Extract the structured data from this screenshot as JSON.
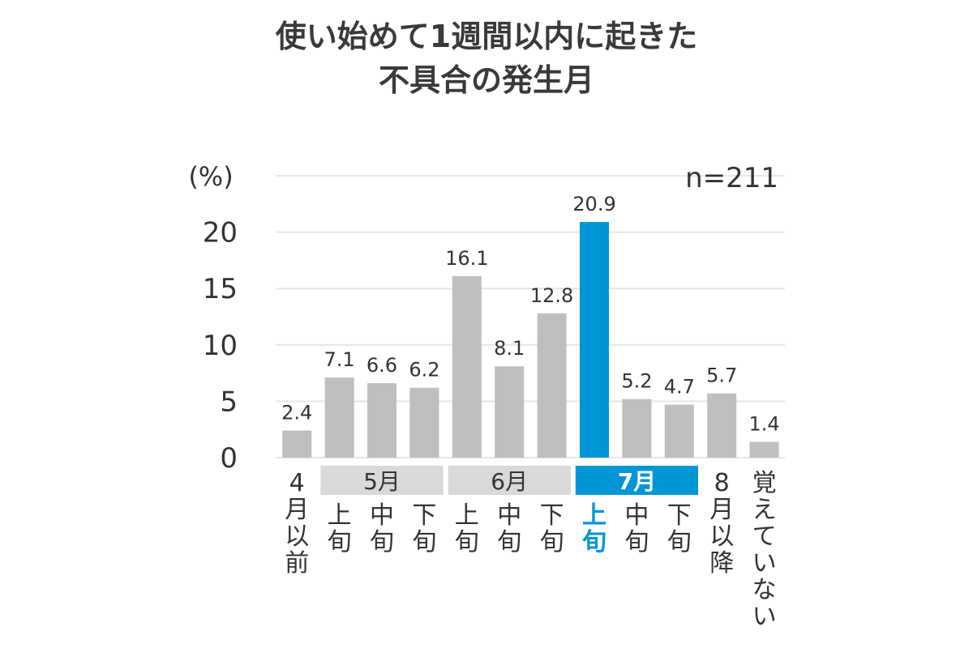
{
  "chart_data": {
    "type": "bar",
    "title_lines": [
      "使い始めて1週間以内に起きた",
      "不具合の発生月"
    ],
    "unit_label": "(%)",
    "sample_label": "n=211",
    "ylim": [
      0,
      25
    ],
    "yticks": [
      "0",
      "5",
      "10",
      "15",
      "20"
    ],
    "grid": true,
    "groups": [
      {
        "label": "5月",
        "highlight": false
      },
      {
        "label": "6月",
        "highlight": false
      },
      {
        "label": "7月",
        "highlight": true
      }
    ],
    "categories": [
      {
        "label": [
          "4",
          "月",
          "以",
          "前"
        ],
        "value": 2.4,
        "value_label": "2.4",
        "highlight": false
      },
      {
        "label": [
          "上",
          "旬"
        ],
        "value": 7.1,
        "value_label": "7.1",
        "highlight": false
      },
      {
        "label": [
          "中",
          "旬"
        ],
        "value": 6.6,
        "value_label": "6.6",
        "highlight": false
      },
      {
        "label": [
          "下",
          "旬"
        ],
        "value": 6.2,
        "value_label": "6.2",
        "highlight": false
      },
      {
        "label": [
          "上",
          "旬"
        ],
        "value": 16.1,
        "value_label": "16.1",
        "highlight": false
      },
      {
        "label": [
          "中",
          "旬"
        ],
        "value": 8.1,
        "value_label": "8.1",
        "highlight": false
      },
      {
        "label": [
          "下",
          "旬"
        ],
        "value": 12.8,
        "value_label": "12.8",
        "highlight": false
      },
      {
        "label": [
          "上",
          "旬"
        ],
        "value": 20.9,
        "value_label": "20.9",
        "highlight": true
      },
      {
        "label": [
          "中",
          "旬"
        ],
        "value": 5.2,
        "value_label": "5.2",
        "highlight": false
      },
      {
        "label": [
          "下",
          "旬"
        ],
        "value": 4.7,
        "value_label": "4.7",
        "highlight": false
      },
      {
        "label": [
          "8",
          "月",
          "以",
          "降"
        ],
        "value": 5.7,
        "value_label": "5.7",
        "highlight": false
      },
      {
        "label": [
          "覚",
          "え",
          "て",
          "い",
          "な",
          "い"
        ],
        "value": 1.4,
        "value_label": "1.4",
        "highlight": false
      }
    ],
    "colors": {
      "bar": "#bfbfbf",
      "highlight": "#0096d6",
      "group_box": "#d9d9d9",
      "grid": "#e6e6e6"
    }
  }
}
